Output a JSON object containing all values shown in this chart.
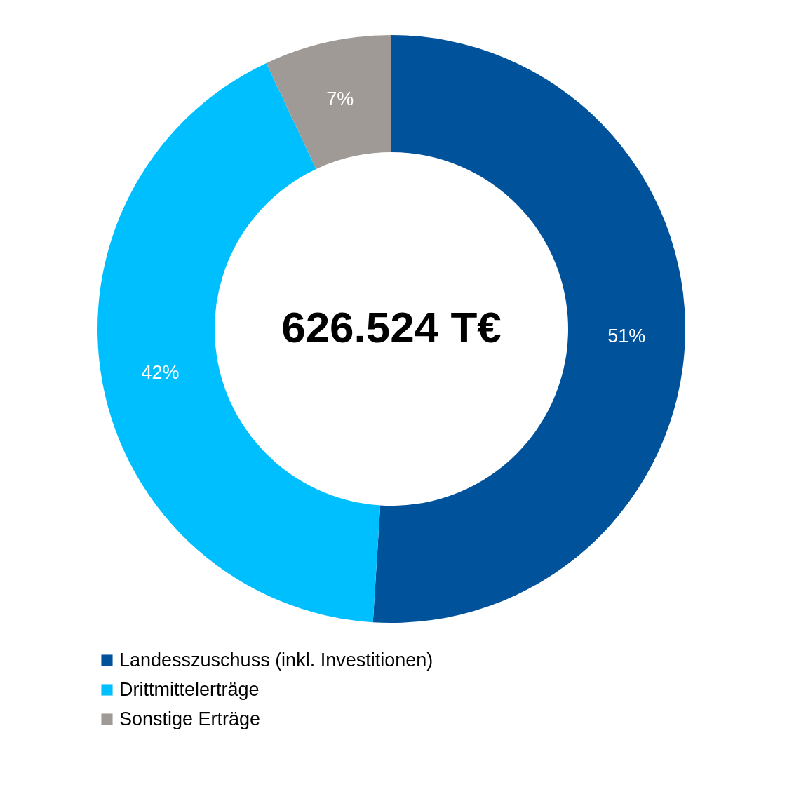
{
  "chart_data": {
    "type": "donut",
    "categories": [
      "Landesszuschuss (inkl. Investitionen)",
      "Drittmittelerträge",
      "Sonstige Erträge"
    ],
    "values": [
      51,
      42,
      7
    ],
    "value_labels": [
      "51%",
      "42%",
      "7%"
    ],
    "colors": [
      "#00529b",
      "#00bfff",
      "#a09a96"
    ],
    "annotations": [
      "626.524 T€"
    ],
    "legend": "bottom"
  }
}
